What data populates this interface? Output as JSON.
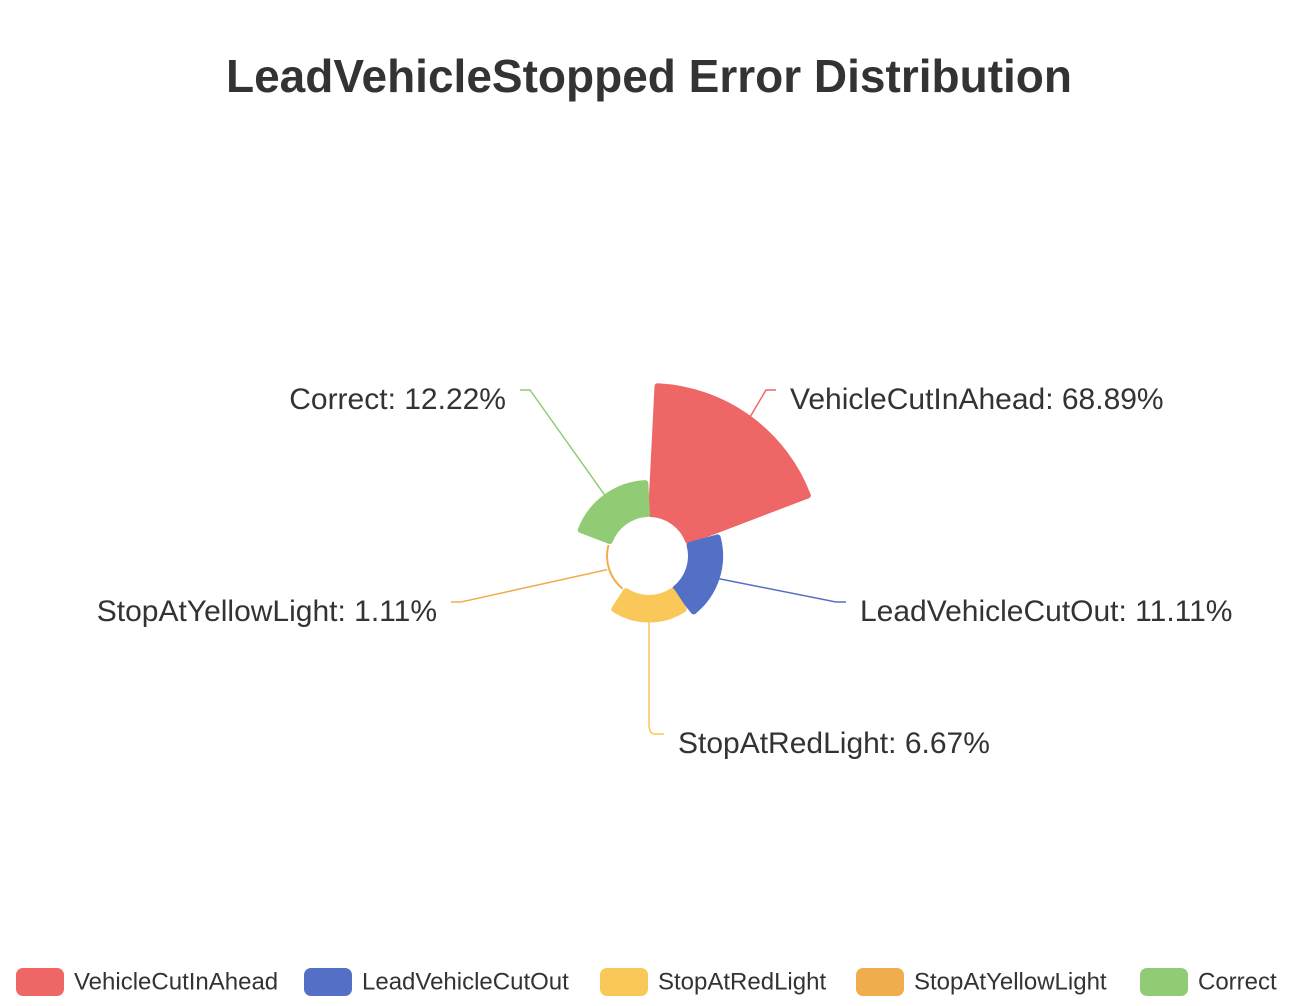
{
  "chart_data": {
    "type": "pie",
    "variant": "rose",
    "title": "LeadVehicleStopped Error Distribution",
    "categories": [
      "VehicleCutInAhead",
      "LeadVehicleCutOut",
      "StopAtRedLight",
      "StopAtYellowLight",
      "Correct"
    ],
    "values": [
      68.89,
      11.11,
      6.67,
      1.11,
      12.22
    ],
    "value_unit": "%",
    "labels": [
      "VehicleCutInAhead: 68.89%",
      "LeadVehicleCutOut: 11.11%",
      "StopAtRedLight: 6.67%",
      "StopAtYellowLight: 1.11%",
      "Correct: 12.22%"
    ],
    "colors": [
      "#ee6666",
      "#5470c6",
      "#fac858",
      "#f0ad4e",
      "#91cc75"
    ],
    "legend_position": "bottom"
  }
}
